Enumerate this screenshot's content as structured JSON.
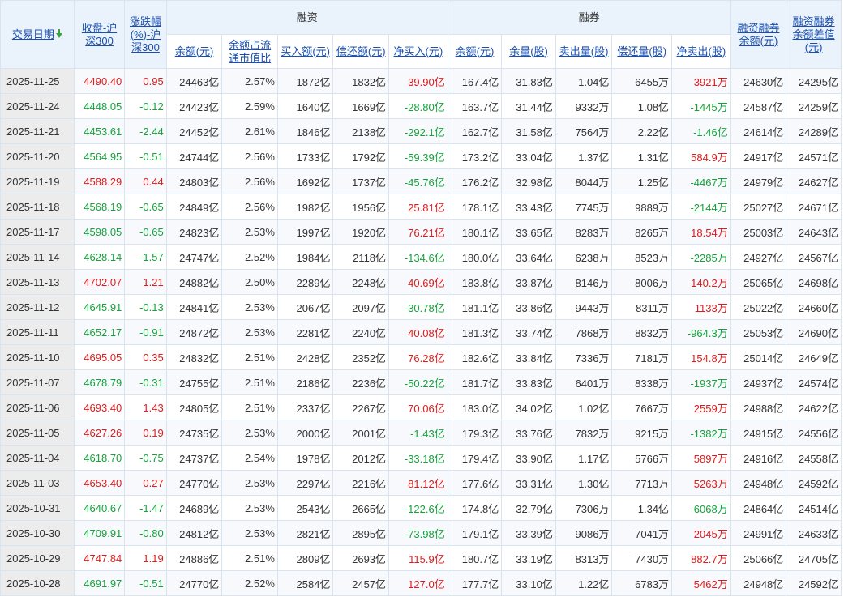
{
  "header": {
    "date": "交易日期",
    "close": "收盘-沪深300",
    "change": "涨跌幅(%)-沪深300",
    "margin_group": "融资",
    "short_group": "融券",
    "total_balance": "融资融券余额(元)",
    "diff": "融资融券余额差值(元)",
    "mg_balance": "余额(元)",
    "mg_ratio": "余额占流通市值比",
    "mg_buy": "买入额(元)",
    "mg_repay": "偿还额(元)",
    "mg_net": "净买入(元)",
    "sh_balance": "余额(元)",
    "sh_volume": "余量(股)",
    "sh_sell": "卖出量(股)",
    "sh_repay": "偿还量(股)",
    "sh_net": "净卖出(股)"
  },
  "colors": {
    "up": "#e01b1b",
    "down": "#14a33a",
    "header_bg": "#eaf3fb",
    "link": "#1a4fb0"
  },
  "rows": [
    [
      "2025-11-25",
      "4490.40",
      "0.95",
      "24463亿",
      "2.57%",
      "1872亿",
      "1832亿",
      "39.90亿",
      "167.4亿",
      "31.83亿",
      "1.04亿",
      "6455万",
      "3921万",
      "24630亿",
      "24295亿"
    ],
    [
      "2025-11-24",
      "4448.05",
      "-0.12",
      "24423亿",
      "2.59%",
      "1640亿",
      "1669亿",
      "-28.80亿",
      "163.7亿",
      "31.44亿",
      "9332万",
      "1.08亿",
      "-1445万",
      "24587亿",
      "24259亿"
    ],
    [
      "2025-11-21",
      "4453.61",
      "-2.44",
      "24452亿",
      "2.61%",
      "1846亿",
      "2138亿",
      "-292.1亿",
      "162.7亿",
      "31.58亿",
      "7564万",
      "2.22亿",
      "-1.46亿",
      "24614亿",
      "24289亿"
    ],
    [
      "2025-11-20",
      "4564.95",
      "-0.51",
      "24744亿",
      "2.56%",
      "1733亿",
      "1792亿",
      "-59.39亿",
      "173.2亿",
      "33.04亿",
      "1.37亿",
      "1.31亿",
      "584.9万",
      "24917亿",
      "24571亿"
    ],
    [
      "2025-11-19",
      "4588.29",
      "0.44",
      "24803亿",
      "2.56%",
      "1692亿",
      "1737亿",
      "-45.76亿",
      "176.2亿",
      "32.98亿",
      "8044万",
      "1.25亿",
      "-4467万",
      "24979亿",
      "24627亿"
    ],
    [
      "2025-11-18",
      "4568.19",
      "-0.65",
      "24849亿",
      "2.56%",
      "1982亿",
      "1956亿",
      "25.81亿",
      "178.1亿",
      "33.43亿",
      "7745万",
      "9889万",
      "-2144万",
      "25027亿",
      "24671亿"
    ],
    [
      "2025-11-17",
      "4598.05",
      "-0.65",
      "24823亿",
      "2.53%",
      "1997亿",
      "1920亿",
      "76.21亿",
      "180.1亿",
      "33.65亿",
      "8283万",
      "8265万",
      "18.54万",
      "25003亿",
      "24643亿"
    ],
    [
      "2025-11-14",
      "4628.14",
      "-1.57",
      "24747亿",
      "2.52%",
      "1984亿",
      "2118亿",
      "-134.6亿",
      "180.0亿",
      "33.64亿",
      "6238万",
      "8523万",
      "-2285万",
      "24927亿",
      "24567亿"
    ],
    [
      "2025-11-13",
      "4702.07",
      "1.21",
      "24882亿",
      "2.50%",
      "2289亿",
      "2248亿",
      "40.69亿",
      "183.8亿",
      "33.87亿",
      "8146万",
      "8006万",
      "140.2万",
      "25065亿",
      "24698亿"
    ],
    [
      "2025-11-12",
      "4645.91",
      "-0.13",
      "24841亿",
      "2.53%",
      "2067亿",
      "2097亿",
      "-30.78亿",
      "181.1亿",
      "33.86亿",
      "9443万",
      "8311万",
      "1133万",
      "25022亿",
      "24660亿"
    ],
    [
      "2025-11-11",
      "4652.17",
      "-0.91",
      "24872亿",
      "2.53%",
      "2281亿",
      "2240亿",
      "40.08亿",
      "181.3亿",
      "33.74亿",
      "7868万",
      "8832万",
      "-964.3万",
      "25053亿",
      "24690亿"
    ],
    [
      "2025-11-10",
      "4695.05",
      "0.35",
      "24832亿",
      "2.51%",
      "2428亿",
      "2352亿",
      "76.28亿",
      "182.6亿",
      "33.84亿",
      "7336万",
      "7181万",
      "154.8万",
      "25014亿",
      "24649亿"
    ],
    [
      "2025-11-07",
      "4678.79",
      "-0.31",
      "24755亿",
      "2.51%",
      "2186亿",
      "2236亿",
      "-50.22亿",
      "181.7亿",
      "33.83亿",
      "6401万",
      "8338万",
      "-1937万",
      "24937亿",
      "24574亿"
    ],
    [
      "2025-11-06",
      "4693.40",
      "1.43",
      "24805亿",
      "2.51%",
      "2337亿",
      "2267亿",
      "70.06亿",
      "183.0亿",
      "34.02亿",
      "1.02亿",
      "7667万",
      "2559万",
      "24988亿",
      "24622亿"
    ],
    [
      "2025-11-05",
      "4627.26",
      "0.19",
      "24735亿",
      "2.53%",
      "2000亿",
      "2001亿",
      "-1.43亿",
      "179.3亿",
      "33.76亿",
      "7832万",
      "9215万",
      "-1382万",
      "24915亿",
      "24556亿"
    ],
    [
      "2025-11-04",
      "4618.70",
      "-0.75",
      "24737亿",
      "2.54%",
      "1978亿",
      "2012亿",
      "-33.18亿",
      "179.4亿",
      "33.90亿",
      "1.17亿",
      "5766万",
      "5897万",
      "24916亿",
      "24558亿"
    ],
    [
      "2025-11-03",
      "4653.40",
      "0.27",
      "24770亿",
      "2.53%",
      "2297亿",
      "2216亿",
      "81.12亿",
      "177.6亿",
      "33.31亿",
      "1.30亿",
      "7713万",
      "5263万",
      "24948亿",
      "24592亿"
    ],
    [
      "2025-10-31",
      "4640.67",
      "-1.47",
      "24689亿",
      "2.53%",
      "2543亿",
      "2665亿",
      "-122.6亿",
      "174.8亿",
      "32.79亿",
      "7306万",
      "1.34亿",
      "-6068万",
      "24864亿",
      "24514亿"
    ],
    [
      "2025-10-30",
      "4709.91",
      "-0.80",
      "24812亿",
      "2.53%",
      "2821亿",
      "2895亿",
      "-73.98亿",
      "179.1亿",
      "33.39亿",
      "9086万",
      "7041万",
      "2045万",
      "24991亿",
      "24633亿"
    ],
    [
      "2025-10-29",
      "4747.84",
      "1.19",
      "24886亿",
      "2.51%",
      "2809亿",
      "2693亿",
      "115.9亿",
      "180.7亿",
      "33.19亿",
      "8313万",
      "7430万",
      "882.7万",
      "25066亿",
      "24705亿"
    ],
    [
      "2025-10-28",
      "4691.97",
      "-0.51",
      "24770亿",
      "2.52%",
      "2584亿",
      "2457亿",
      "127.0亿",
      "177.7亿",
      "33.10亿",
      "1.22亿",
      "6783万",
      "5462万",
      "24948亿",
      "24592亿"
    ]
  ]
}
